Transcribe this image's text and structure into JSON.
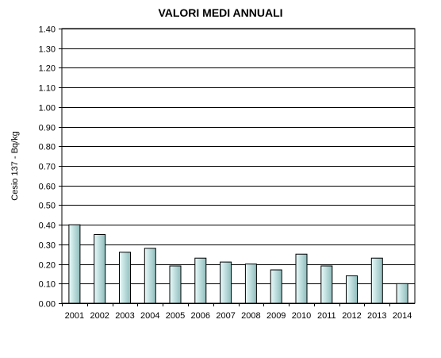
{
  "chart_data": {
    "type": "bar",
    "title": "VALORI MEDI ANNUALI",
    "xlabel": "",
    "ylabel": "Cesio 137  - Bq/kg",
    "ylim": [
      0,
      1.4
    ],
    "ytick_step": 0.1,
    "ytick_labels": [
      "0.00",
      "0.10",
      "0.20",
      "0.30",
      "0.40",
      "0.50",
      "0.60",
      "0.70",
      "0.80",
      "0.90",
      "1.00",
      "1.10",
      "1.20",
      "1.30",
      "1.40"
    ],
    "grid": true,
    "legend": "none",
    "categories": [
      "2001",
      "2002",
      "2003",
      "2004",
      "2005",
      "2006",
      "2007",
      "2008",
      "2009",
      "2010",
      "2011",
      "2012",
      "2013",
      "2014"
    ],
    "values": [
      0.4,
      0.35,
      0.26,
      0.28,
      0.19,
      0.23,
      0.21,
      0.2,
      0.17,
      0.25,
      0.19,
      0.14,
      0.23,
      0.1
    ],
    "bar_color_light": "#e9fbfb",
    "bar_color_dark": "#8fbcbc"
  }
}
